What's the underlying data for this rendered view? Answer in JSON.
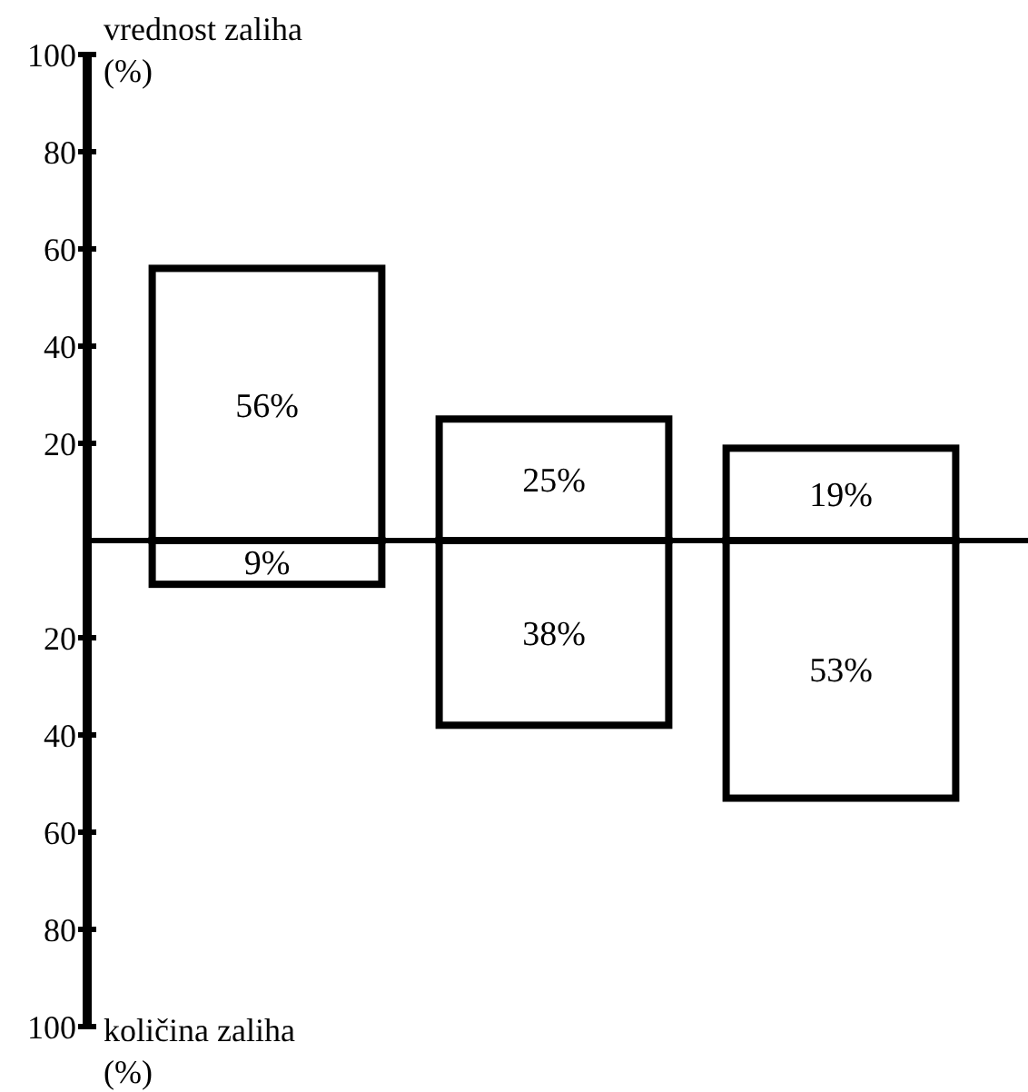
{
  "chart_data": {
    "type": "bar",
    "stacked": true,
    "categories": [
      null,
      null,
      null
    ],
    "series": [
      {
        "color": "#000000",
        "values": [
          56,
          25,
          19
        ],
        "value_labels": [
          "56%",
          "25%",
          "19%"
        ]
      },
      {
        "color": "#000000",
        "axis": "y2",
        "values": [
          9,
          38,
          53
        ],
        "value_labels": [
          "9%",
          "38%",
          "53%"
        ]
      }
    ],
    "ylim": [
      -100,
      100
    ],
    "yticks": [
      20,
      40,
      60,
      80,
      100
    ],
    "y2lim": [
      100,
      -100
    ],
    "y2ticks": [
      20,
      40,
      60,
      80,
      100
    ],
    "annotations": [
      "vrednost zaliha (%)",
      "količina zaliha (%)"
    ],
    "grid": false
  }
}
